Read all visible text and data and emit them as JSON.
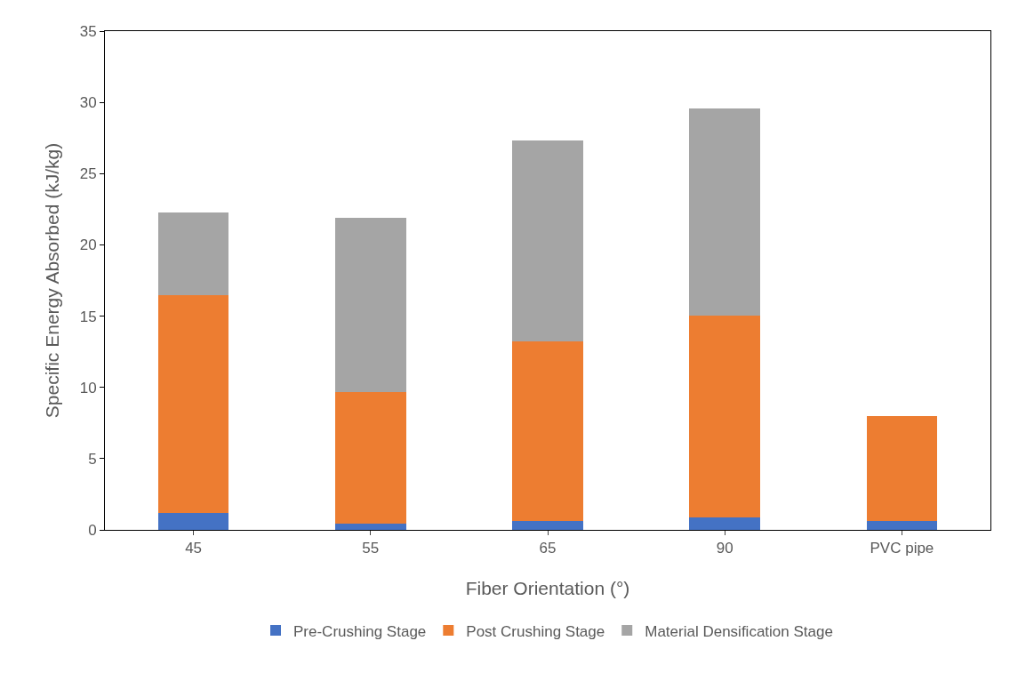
{
  "chart_data": {
    "type": "bar",
    "stacked": true,
    "xlabel": "Fiber Orientation (°)",
    "ylabel": "Specific Energy Absorbed (kJ/kg)",
    "categories": [
      "45",
      "55",
      "65",
      "90",
      "PVC pipe"
    ],
    "series": [
      {
        "name": "Pre-Crushing Stage",
        "color": "#4472c4",
        "values": [
          1.2,
          0.45,
          0.6,
          0.85,
          0.6
        ]
      },
      {
        "name": "Post Crushing Stage",
        "color": "#ed7d31",
        "values": [
          15.3,
          9.25,
          12.6,
          14.2,
          7.4
        ]
      },
      {
        "name": "Material Densification Stage",
        "color": "#a5a5a5",
        "values": [
          5.8,
          12.2,
          14.1,
          14.5,
          0
        ]
      }
    ],
    "ylim": [
      0,
      35
    ],
    "yticks": [
      0,
      5,
      10,
      15,
      20,
      25,
      30,
      35
    ],
    "grid": false,
    "legend": "bottom"
  }
}
